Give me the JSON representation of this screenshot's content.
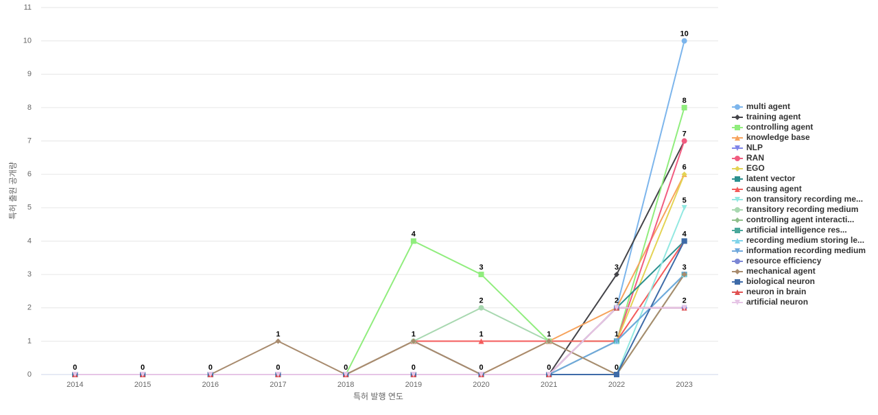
{
  "chart_data": {
    "type": "line",
    "x_label": "특허 발행 연도",
    "y_label": "특허 출원 공개량",
    "categories": [
      "2014",
      "2015",
      "2016",
      "2017",
      "2018",
      "2019",
      "2020",
      "2021",
      "2022",
      "2023"
    ],
    "ylim": [
      0,
      11
    ],
    "yticks": [
      0,
      1,
      2,
      3,
      4,
      5,
      6,
      7,
      8,
      9,
      10,
      11
    ],
    "grid": true,
    "legend": "right",
    "series": [
      {
        "name": "multi agent",
        "color": "#7cb5ec",
        "values": [
          0,
          0,
          0,
          0,
          0,
          0,
          0,
          0,
          2,
          10
        ]
      },
      {
        "name": "training agent",
        "color": "#434348",
        "values": [
          0,
          0,
          0,
          0,
          0,
          1,
          0,
          0,
          3,
          7
        ]
      },
      {
        "name": "controlling agent",
        "color": "#90ed7d",
        "values": [
          0,
          0,
          0,
          0,
          0,
          4,
          3,
          1,
          1,
          8
        ]
      },
      {
        "name": "knowledge base",
        "color": "#f7a35c",
        "values": [
          0,
          0,
          0,
          0,
          0,
          0,
          0,
          1,
          2,
          6
        ]
      },
      {
        "name": "NLP",
        "color": "#8085e9",
        "values": [
          0,
          0,
          0,
          0,
          0,
          0,
          0,
          0,
          2,
          2
        ]
      },
      {
        "name": "RAN",
        "color": "#f15c80",
        "values": [
          0,
          0,
          0,
          0,
          0,
          0,
          0,
          0,
          1,
          7
        ]
      },
      {
        "name": "EGO",
        "color": "#e4d354",
        "values": [
          0,
          0,
          0,
          0,
          0,
          0,
          0,
          0,
          1,
          6
        ]
      },
      {
        "name": "latent vector",
        "color": "#2b908f",
        "values": [
          0,
          0,
          0,
          0,
          0,
          0,
          0,
          0,
          2,
          4
        ]
      },
      {
        "name": "causing agent",
        "color": "#f45b5b",
        "values": [
          0,
          0,
          0,
          0,
          0,
          1,
          1,
          1,
          1,
          4
        ]
      },
      {
        "name": "non transitory recording me...",
        "color": "#91e8e1",
        "values": [
          0,
          0,
          0,
          0,
          0,
          0,
          0,
          0,
          0,
          5
        ]
      },
      {
        "name": "transitory recording medium",
        "color": "#a8d8b0",
        "values": [
          0,
          0,
          0,
          0,
          0,
          1,
          2,
          1,
          0,
          3
        ]
      },
      {
        "name": "controlling agent interacti...",
        "color": "#8fbf8a",
        "values": [
          0,
          0,
          0,
          0,
          0,
          0,
          0,
          0,
          0,
          3
        ]
      },
      {
        "name": "artificial intelligence res...",
        "color": "#4aa89b",
        "values": [
          0,
          0,
          0,
          0,
          0,
          0,
          0,
          0,
          1,
          3
        ]
      },
      {
        "name": "recording medium storing le...",
        "color": "#7ed3e9",
        "values": [
          0,
          0,
          0,
          0,
          0,
          0,
          0,
          0,
          1,
          3
        ]
      },
      {
        "name": "information recording medium",
        "color": "#6fa8dc",
        "values": [
          0,
          0,
          0,
          0,
          0,
          0,
          0,
          0,
          1,
          3
        ]
      },
      {
        "name": "resource efficiency",
        "color": "#7b86d4",
        "values": [
          0,
          0,
          0,
          0,
          0,
          0,
          0,
          0,
          2,
          2
        ]
      },
      {
        "name": "mechanical agent",
        "color": "#a88b6e",
        "values": [
          0,
          0,
          0,
          1,
          0,
          1,
          0,
          1,
          0,
          3
        ]
      },
      {
        "name": "biological neuron",
        "color": "#3e6ba8",
        "values": [
          0,
          0,
          0,
          0,
          0,
          0,
          0,
          0,
          0,
          4
        ]
      },
      {
        "name": "neuron in brain",
        "color": "#e05050",
        "values": [
          0,
          0,
          0,
          0,
          0,
          0,
          0,
          0,
          2,
          2
        ]
      },
      {
        "name": "artificial neuron",
        "color": "#e6c5e6",
        "values": [
          0,
          0,
          0,
          0,
          0,
          0,
          0,
          0,
          2,
          2
        ]
      }
    ]
  }
}
